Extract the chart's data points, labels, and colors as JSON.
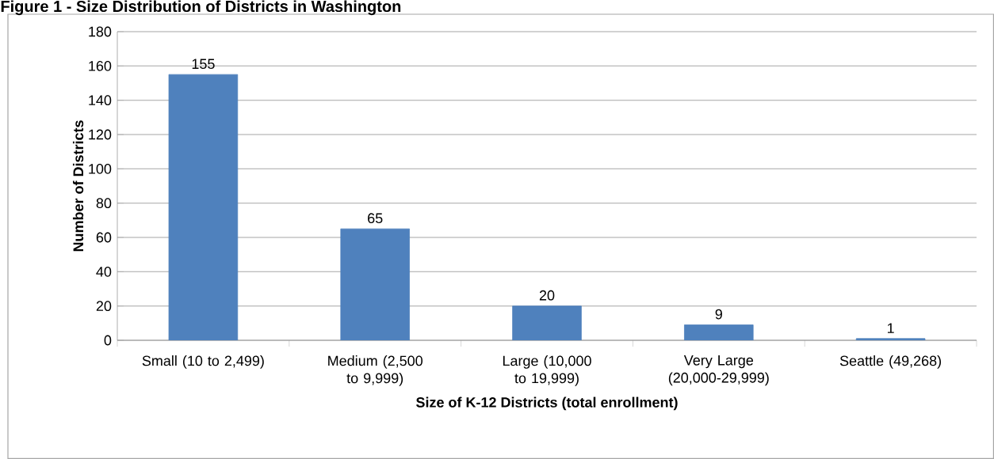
{
  "chart_data": {
    "type": "bar",
    "title": "Figure 1 - Size Distribution of Districts in Washington",
    "xlabel": "Size of K-12 Districts (total enrollment)",
    "ylabel": "Number of Districts",
    "categories": [
      "Small (10 to 2,499)",
      "Medium (2,500 to 9,999)",
      "Large (10,000 to 19,999)",
      "Very Large (20,000-29,999)",
      "Seattle (49,268)"
    ],
    "values": [
      155,
      65,
      20,
      9,
      1
    ],
    "color": "#4f81bd",
    "ylim": [
      0,
      180
    ],
    "yticks": [
      0,
      20,
      40,
      60,
      80,
      100,
      120,
      140,
      160,
      180
    ],
    "grid": "y",
    "data_labels": true
  }
}
